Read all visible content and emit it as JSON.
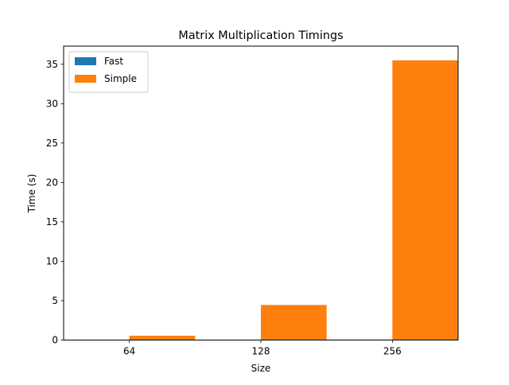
{
  "chart_data": {
    "type": "bar",
    "title": "Matrix Multiplication Timings",
    "xlabel": "Size",
    "ylabel": "Time (s)",
    "categories": [
      "64",
      "128",
      "256"
    ],
    "series": [
      {
        "name": "Fast",
        "color": "#1f77b4",
        "values": [
          0.002,
          0.01,
          0.06
        ]
      },
      {
        "name": "Simple",
        "color": "#ff7f0e",
        "values": [
          0.55,
          4.45,
          35.5
        ]
      }
    ],
    "ylim": [
      0,
      37.3
    ],
    "yticks": [
      0,
      5,
      10,
      15,
      20,
      25,
      30,
      35
    ],
    "grid": false,
    "legend": "top-left"
  }
}
